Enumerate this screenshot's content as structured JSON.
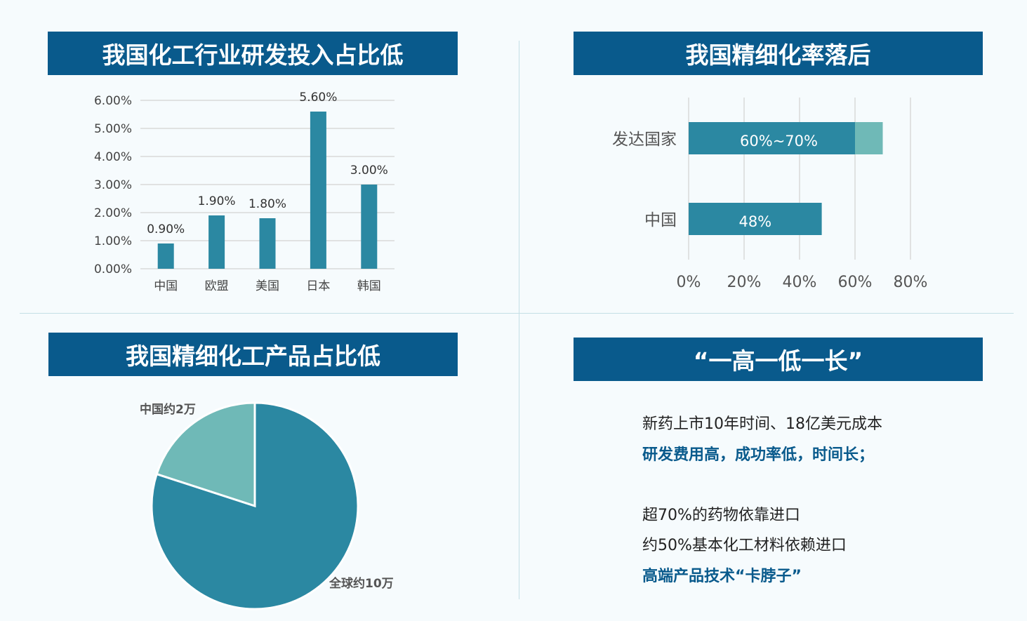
{
  "panels": {
    "rd_title": "我国化工行业研发投入占比低",
    "refine_title": "我国精细化率落后",
    "product_title": "我国精细化工产品占比低",
    "summary_title": "“一高一低一长”"
  },
  "summary": {
    "line1": "新药上市10年时间、18亿美元成本",
    "line2": "研发费用高，成功率低，时间长；",
    "line3": "超70%的药物依靠进口",
    "line4": "约50%基本化工材料依赖进口",
    "line5": "高端产品技术“卡脖子”"
  },
  "colors": {
    "banner": "#095a8c",
    "bar": "#2b88a2",
    "bar_light": "#6fb9b7",
    "highlight_text": "#095a8c",
    "grid": "#d9d9d9"
  },
  "chart_data": [
    {
      "type": "bar",
      "categories": [
        "中国",
        "欧盟",
        "美国",
        "日本",
        "韩国"
      ],
      "values": [
        0.9,
        1.9,
        1.8,
        5.6,
        3.0
      ],
      "data_labels": [
        "0.90%",
        "1.90%",
        "1.80%",
        "5.60%",
        "3.00%"
      ],
      "yticks": [
        "0.00%",
        "1.00%",
        "2.00%",
        "3.00%",
        "4.00%",
        "5.00%",
        "6.00%"
      ],
      "ylim": [
        0,
        6
      ],
      "grid": true
    },
    {
      "type": "bar",
      "orientation": "horizontal",
      "categories": [
        "发达国家",
        "中国"
      ],
      "ranges": [
        [
          60,
          70
        ],
        [
          48,
          48
        ]
      ],
      "data_labels": [
        "60%~70%",
        "48%"
      ],
      "xticks": [
        "0%",
        "20%",
        "40%",
        "60%",
        "80%"
      ],
      "xlim": [
        0,
        80
      ],
      "grid": true
    },
    {
      "type": "pie",
      "labels": [
        "中国约2万",
        "全球约10万"
      ],
      "values": [
        2,
        10
      ],
      "note": "中国 slice is part of the 全球 total"
    }
  ]
}
